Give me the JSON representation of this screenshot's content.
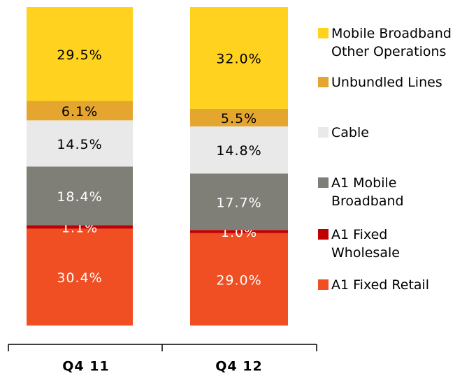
{
  "chart_data": {
    "type": "stacked_bar",
    "categories": [
      "Q4 11",
      "Q4 12"
    ],
    "ylim": [
      0,
      100
    ],
    "series": [
      {
        "name": "A1 Fixed Retail",
        "color": "#f04e23",
        "label_color": "#ffffff",
        "values": [
          30.4,
          29.0
        ],
        "value_labels": [
          "30.4%",
          "29.0%"
        ]
      },
      {
        "name": "A1 Fixed Wholesale",
        "color": "#c00000",
        "label_color": "#ffffff",
        "values": [
          1.1,
          1.0
        ],
        "value_labels": [
          "1.1%",
          "1.0%"
        ]
      },
      {
        "name": "A1 Mobile Broadband",
        "color": "#7f7f77",
        "label_color": "#ffffff",
        "values": [
          18.4,
          17.7
        ],
        "value_labels": [
          "18.4%",
          "17.7%"
        ]
      },
      {
        "name": "Cable",
        "color": "#e9e9e9",
        "label_color": "#000000",
        "values": [
          14.5,
          14.8
        ],
        "value_labels": [
          "14.5%",
          "14.8%"
        ]
      },
      {
        "name": "Unbundled Lines",
        "color": "#e5a630",
        "label_color": "#000000",
        "values": [
          6.1,
          5.5
        ],
        "value_labels": [
          "6.1%",
          "5.5%"
        ]
      },
      {
        "name": "Mobile Broadband Other Operations",
        "color": "#ffd21f",
        "label_color": "#000000",
        "values": [
          29.5,
          32.0
        ],
        "value_labels": [
          "29.5%",
          "32.0%"
        ]
      }
    ]
  }
}
